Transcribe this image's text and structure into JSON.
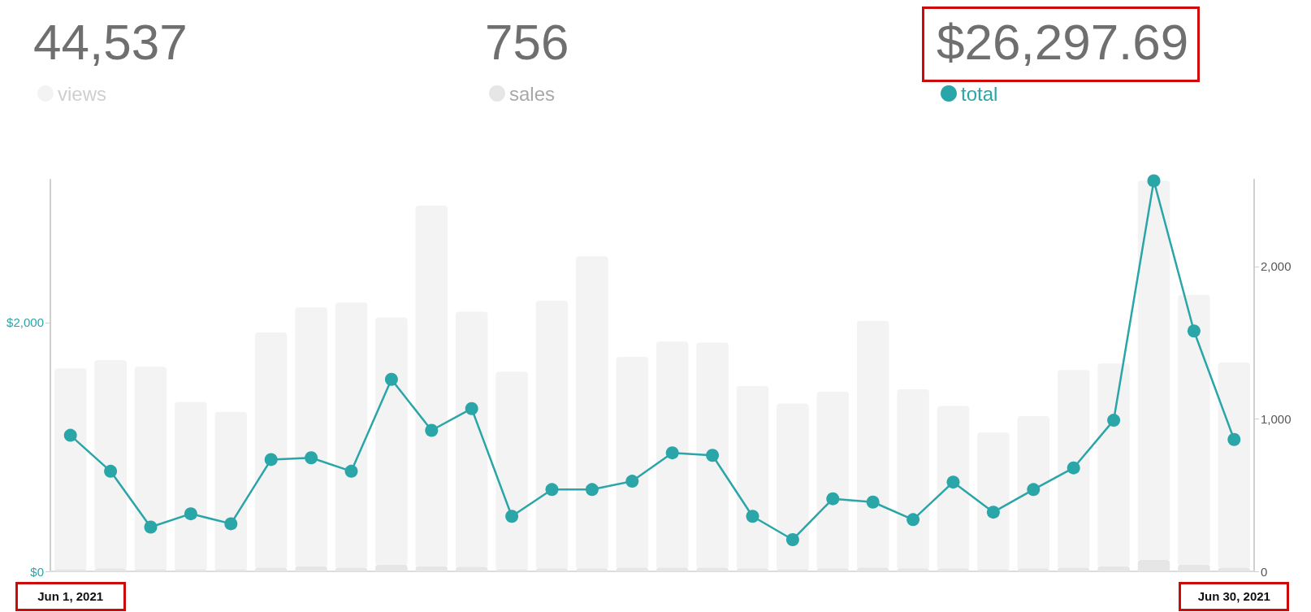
{
  "chart_data": {
    "type": "bar",
    "categories": [
      "Jun 1, 2021",
      null,
      null,
      null,
      null,
      null,
      null,
      null,
      null,
      null,
      null,
      null,
      null,
      null,
      null,
      null,
      null,
      null,
      null,
      null,
      null,
      null,
      null,
      null,
      null,
      null,
      null,
      null,
      null,
      "Jun 30, 2021"
    ],
    "series": [
      {
        "name": "sales",
        "axis": "y2",
        "color": "#e6e6e6",
        "values": [
          15,
          20,
          15,
          15,
          15,
          25,
          35,
          25,
          45,
          35,
          30,
          15,
          20,
          20,
          25,
          25,
          25,
          20,
          15,
          20,
          25,
          20,
          20,
          15,
          20,
          25,
          35,
          75,
          45,
          25
        ]
      },
      {
        "name": "views",
        "axis": "y2",
        "color": "#f3f3f3",
        "values": [
          1317,
          1366,
          1327,
          1097,
          1032,
          1542,
          1697,
          1739,
          1621,
          2365,
          1674,
          1295,
          1755,
          2046,
          1383,
          1482,
          1476,
          1196,
          1086,
          1158,
          1619,
          1175,
          1065,
          895,
          999,
          1296,
          1329,
          2489,
          1769,
          1345
        ]
      },
      {
        "name": "total",
        "type": "line",
        "axis": "y",
        "color": "#2aa5a8",
        "values": [
          1094,
          805,
          356,
          463,
          383,
          899,
          913,
          805,
          1544,
          1134,
          1309,
          443,
          658,
          658,
          725,
          953,
          933,
          443,
          255,
          584,
          557,
          416,
          718,
          476,
          658,
          832,
          1215,
          3141,
          1933,
          1060
        ]
      }
    ],
    "ylim": [
      0,
      3150
    ],
    "yticks": [
      {
        "value": 0,
        "label": "$0"
      },
      {
        "value": 2000,
        "label": "$2,000"
      }
    ],
    "y2lim": [
      0,
      2570
    ],
    "y2ticks": [
      0,
      {
        "value": 1000,
        "label": "1,000"
      },
      {
        "value": 2000,
        "label": "2,000"
      }
    ],
    "annotations": [
      "44,537",
      "756",
      "$26,297.69"
    ],
    "stacked": true,
    "legend": "top left",
    "grid": false,
    "marker": "circle",
    "line_style": "solid"
  }
}
